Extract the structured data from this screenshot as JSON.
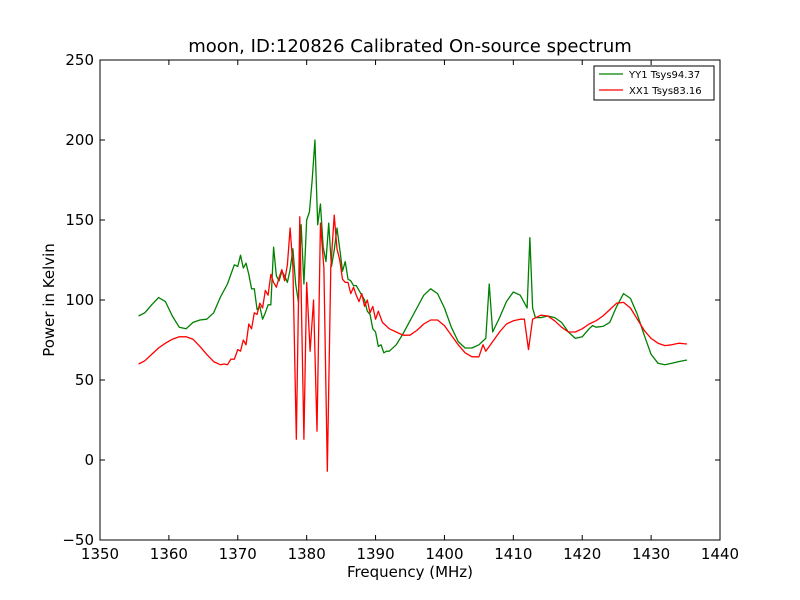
{
  "chart_data": {
    "type": "line",
    "title": "moon, ID:120826 Calibrated On-source spectrum",
    "xlabel": "Frequency (MHz)",
    "ylabel": "Power in Kelvin",
    "xlim": [
      1350,
      1440
    ],
    "ylim": [
      -50,
      250
    ],
    "xticks": [
      1350,
      1360,
      1370,
      1380,
      1390,
      1400,
      1410,
      1420,
      1430,
      1440
    ],
    "yticks": [
      -50,
      0,
      50,
      100,
      150,
      200,
      250
    ],
    "xtick_labels": [
      "1350",
      "1360",
      "1370",
      "1380",
      "1390",
      "1400",
      "1410",
      "1420",
      "1430",
      "1440"
    ],
    "ytick_labels": [
      "−50",
      "0",
      "50",
      "100",
      "150",
      "200",
      "250"
    ],
    "grid": false,
    "legend_position": "top-right",
    "series": [
      {
        "name": "YY1 Tsys94.37",
        "color": "#008000",
        "points": [
          [
            1355.6,
            90
          ],
          [
            1356.5,
            92
          ],
          [
            1357.5,
            97
          ],
          [
            1358.5,
            101.5
          ],
          [
            1359.5,
            99
          ],
          [
            1360.5,
            90
          ],
          [
            1361.5,
            83
          ],
          [
            1362.5,
            82
          ],
          [
            1363.5,
            86
          ],
          [
            1364.5,
            87.5
          ],
          [
            1365.5,
            88
          ],
          [
            1366.5,
            92
          ],
          [
            1367.5,
            102
          ],
          [
            1368.5,
            110
          ],
          [
            1369.0,
            116
          ],
          [
            1369.5,
            122
          ],
          [
            1370.0,
            121
          ],
          [
            1370.4,
            128
          ],
          [
            1370.8,
            120
          ],
          [
            1371.2,
            123
          ],
          [
            1371.6,
            116
          ],
          [
            1372.0,
            107
          ],
          [
            1372.4,
            107
          ],
          [
            1372.8,
            94
          ],
          [
            1373.2,
            96
          ],
          [
            1373.6,
            88
          ],
          [
            1374.0,
            92
          ],
          [
            1374.4,
            97
          ],
          [
            1374.8,
            97
          ],
          [
            1375.2,
            133
          ],
          [
            1375.6,
            115
          ],
          [
            1376.0,
            112
          ],
          [
            1376.4,
            118
          ],
          [
            1376.8,
            115
          ],
          [
            1377.2,
            111
          ],
          [
            1377.6,
            119
          ],
          [
            1378.0,
            132
          ],
          [
            1378.4,
            110
          ],
          [
            1378.8,
            99
          ],
          [
            1379.2,
            147
          ],
          [
            1379.6,
            110
          ],
          [
            1380.0,
            150
          ],
          [
            1380.4,
            155
          ],
          [
            1380.8,
            175
          ],
          [
            1381.2,
            200
          ],
          [
            1381.6,
            147
          ],
          [
            1382.0,
            160
          ],
          [
            1382.4,
            133
          ],
          [
            1382.8,
            124
          ],
          [
            1383.2,
            148
          ],
          [
            1383.6,
            121
          ],
          [
            1384.0,
            131
          ],
          [
            1384.4,
            145
          ],
          [
            1384.8,
            132
          ],
          [
            1385.2,
            118
          ],
          [
            1385.6,
            124
          ],
          [
            1386.0,
            113
          ],
          [
            1386.4,
            112
          ],
          [
            1386.8,
            109
          ],
          [
            1387.2,
            109
          ],
          [
            1387.6,
            106
          ],
          [
            1388.0,
            103
          ],
          [
            1388.4,
            100
          ],
          [
            1388.8,
            93
          ],
          [
            1389.2,
            91
          ],
          [
            1389.6,
            82
          ],
          [
            1390.0,
            80
          ],
          [
            1390.4,
            71
          ],
          [
            1390.8,
            72
          ],
          [
            1391.2,
            67
          ],
          [
            1391.6,
            68
          ],
          [
            1392.0,
            68
          ],
          [
            1393.0,
            72
          ],
          [
            1394.0,
            79
          ],
          [
            1395.0,
            87
          ],
          [
            1396.0,
            95
          ],
          [
            1397.0,
            103
          ],
          [
            1398.0,
            107
          ],
          [
            1399.0,
            104
          ],
          [
            1400.0,
            95
          ],
          [
            1401.0,
            83
          ],
          [
            1402.0,
            74
          ],
          [
            1403.0,
            70
          ],
          [
            1404.0,
            70
          ],
          [
            1405.0,
            72
          ],
          [
            1406.0,
            76
          ],
          [
            1406.5,
            110
          ],
          [
            1407.0,
            80
          ],
          [
            1408.0,
            89
          ],
          [
            1409.0,
            99
          ],
          [
            1410.0,
            105
          ],
          [
            1411.0,
            103
          ],
          [
            1412.0,
            95
          ],
          [
            1412.4,
            139
          ],
          [
            1412.8,
            95
          ],
          [
            1413.2,
            89
          ],
          [
            1414.0,
            89
          ],
          [
            1415.0,
            90
          ],
          [
            1416.0,
            89
          ],
          [
            1417.0,
            86
          ],
          [
            1418.0,
            80
          ],
          [
            1419.0,
            76
          ],
          [
            1420.0,
            77
          ],
          [
            1421.0,
            82
          ],
          [
            1421.5,
            84
          ],
          [
            1422.0,
            83
          ],
          [
            1423.0,
            83.5
          ],
          [
            1424.0,
            86
          ],
          [
            1425.0,
            96
          ],
          [
            1426.0,
            104
          ],
          [
            1427.0,
            101
          ],
          [
            1428.0,
            91
          ],
          [
            1429.0,
            78
          ],
          [
            1430.0,
            66
          ],
          [
            1431.0,
            60.5
          ],
          [
            1432.0,
            59.5
          ],
          [
            1433.0,
            60.5
          ],
          [
            1434.0,
            61.5
          ],
          [
            1435.2,
            62.5
          ]
        ]
      },
      {
        "name": "XX1 Tsys83.16",
        "color": "#ff0000",
        "points": [
          [
            1355.6,
            60
          ],
          [
            1356.5,
            62
          ],
          [
            1357.5,
            66
          ],
          [
            1358.5,
            70
          ],
          [
            1359.5,
            73
          ],
          [
            1360.5,
            75.5
          ],
          [
            1361.5,
            77
          ],
          [
            1362.5,
            77
          ],
          [
            1363.5,
            75.5
          ],
          [
            1364.5,
            71
          ],
          [
            1365.5,
            66
          ],
          [
            1366.5,
            61.5
          ],
          [
            1367.5,
            59.5
          ],
          [
            1368.0,
            60
          ],
          [
            1368.5,
            59.5
          ],
          [
            1369.0,
            63
          ],
          [
            1369.5,
            63
          ],
          [
            1370.0,
            69
          ],
          [
            1370.4,
            68
          ],
          [
            1370.8,
            75
          ],
          [
            1371.2,
            72
          ],
          [
            1371.6,
            85
          ],
          [
            1372.0,
            82
          ],
          [
            1372.4,
            92
          ],
          [
            1372.8,
            91
          ],
          [
            1373.2,
            98
          ],
          [
            1373.6,
            95
          ],
          [
            1374.0,
            106
          ],
          [
            1374.4,
            103
          ],
          [
            1374.8,
            116
          ],
          [
            1375.2,
            111
          ],
          [
            1375.6,
            108
          ],
          [
            1376.0,
            114
          ],
          [
            1376.4,
            119
          ],
          [
            1376.8,
            112
          ],
          [
            1377.2,
            122
          ],
          [
            1377.6,
            145
          ],
          [
            1378.0,
            121
          ],
          [
            1378.5,
            13
          ],
          [
            1379.0,
            152
          ],
          [
            1379.6,
            13
          ],
          [
            1380.0,
            111
          ],
          [
            1380.5,
            68
          ],
          [
            1381.0,
            100
          ],
          [
            1381.5,
            18
          ],
          [
            1382.0,
            148
          ],
          [
            1382.5,
            120
          ],
          [
            1383.0,
            -7
          ],
          [
            1383.5,
            120
          ],
          [
            1384.0,
            153
          ],
          [
            1384.4,
            132
          ],
          [
            1384.8,
            125
          ],
          [
            1385.2,
            113
          ],
          [
            1385.6,
            111
          ],
          [
            1386.0,
            111
          ],
          [
            1386.4,
            104
          ],
          [
            1386.8,
            108
          ],
          [
            1387.2,
            103
          ],
          [
            1387.6,
            99
          ],
          [
            1388.0,
            104
          ],
          [
            1388.4,
            96
          ],
          [
            1388.8,
            100
          ],
          [
            1389.2,
            92
          ],
          [
            1389.6,
            96
          ],
          [
            1390.0,
            88
          ],
          [
            1390.4,
            93
          ],
          [
            1391.0,
            86
          ],
          [
            1392.0,
            82
          ],
          [
            1393.0,
            80
          ],
          [
            1394.0,
            78
          ],
          [
            1395.0,
            78
          ],
          [
            1396.0,
            81
          ],
          [
            1397.0,
            85
          ],
          [
            1398.0,
            87.5
          ],
          [
            1399.0,
            87.5
          ],
          [
            1400.0,
            84
          ],
          [
            1401.0,
            78
          ],
          [
            1402.0,
            72
          ],
          [
            1403.0,
            67
          ],
          [
            1404.0,
            64.5
          ],
          [
            1405.0,
            64.5
          ],
          [
            1405.6,
            72
          ],
          [
            1406.0,
            68
          ],
          [
            1407.0,
            74
          ],
          [
            1408.0,
            80
          ],
          [
            1409.0,
            85
          ],
          [
            1410.0,
            87
          ],
          [
            1411.0,
            88
          ],
          [
            1411.6,
            88
          ],
          [
            1412.2,
            69
          ],
          [
            1412.8,
            88
          ],
          [
            1414.0,
            90.5
          ],
          [
            1415.0,
            90
          ],
          [
            1416.0,
            87
          ],
          [
            1417.0,
            83
          ],
          [
            1418.0,
            80
          ],
          [
            1419.0,
            80
          ],
          [
            1420.0,
            82
          ],
          [
            1421.0,
            85
          ],
          [
            1422.0,
            87
          ],
          [
            1423.0,
            90
          ],
          [
            1424.0,
            94
          ],
          [
            1425.0,
            98
          ],
          [
            1426.0,
            98.5
          ],
          [
            1427.0,
            95
          ],
          [
            1428.0,
            88
          ],
          [
            1429.0,
            81
          ],
          [
            1430.0,
            76
          ],
          [
            1431.0,
            73
          ],
          [
            1432.0,
            71.5
          ],
          [
            1433.0,
            72
          ],
          [
            1434.0,
            73
          ],
          [
            1435.2,
            72.5
          ]
        ]
      }
    ]
  }
}
